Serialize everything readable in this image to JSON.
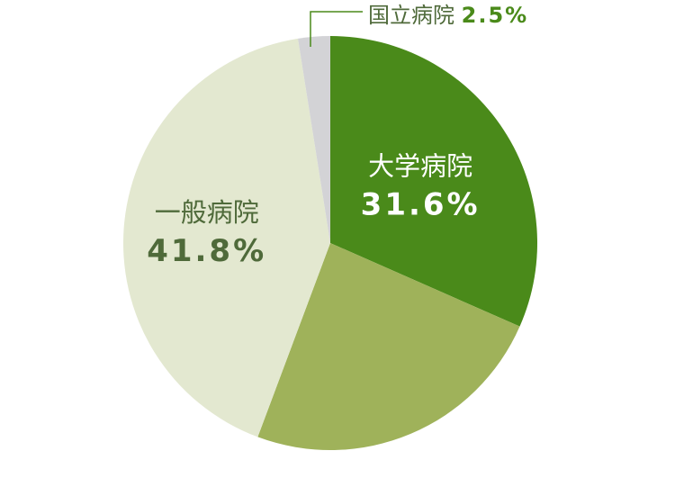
{
  "chart_data": {
    "type": "pie",
    "start_angle_deg": 0,
    "direction": "clockwise",
    "slices": [
      {
        "label": "大学病院",
        "value_text": "31.6%",
        "value": 31.6,
        "color": "#4a8a1a",
        "label_color": "#ffffff",
        "pct_color": "#ffffff"
      },
      {
        "label": "",
        "value_text": "",
        "value": 24.1,
        "color": "#9fb25a",
        "label_color": "#ffffff",
        "pct_color": "#ffffff"
      },
      {
        "label": "一般病院",
        "value_text": "41.8%",
        "value": 41.8,
        "color": "#e3e8d0",
        "label_color": "#4f6a3a",
        "pct_color": "#4f6a3a"
      },
      {
        "label": "国立病院",
        "value_text": "2.5%",
        "value": 2.5,
        "color": "#d3d3d6",
        "label_color": "#4f6a3a",
        "pct_color": "#4a8a1a",
        "callout": true
      }
    ]
  },
  "colors": {
    "callout_line": "#4a8a1a",
    "background": "#ffffff"
  }
}
